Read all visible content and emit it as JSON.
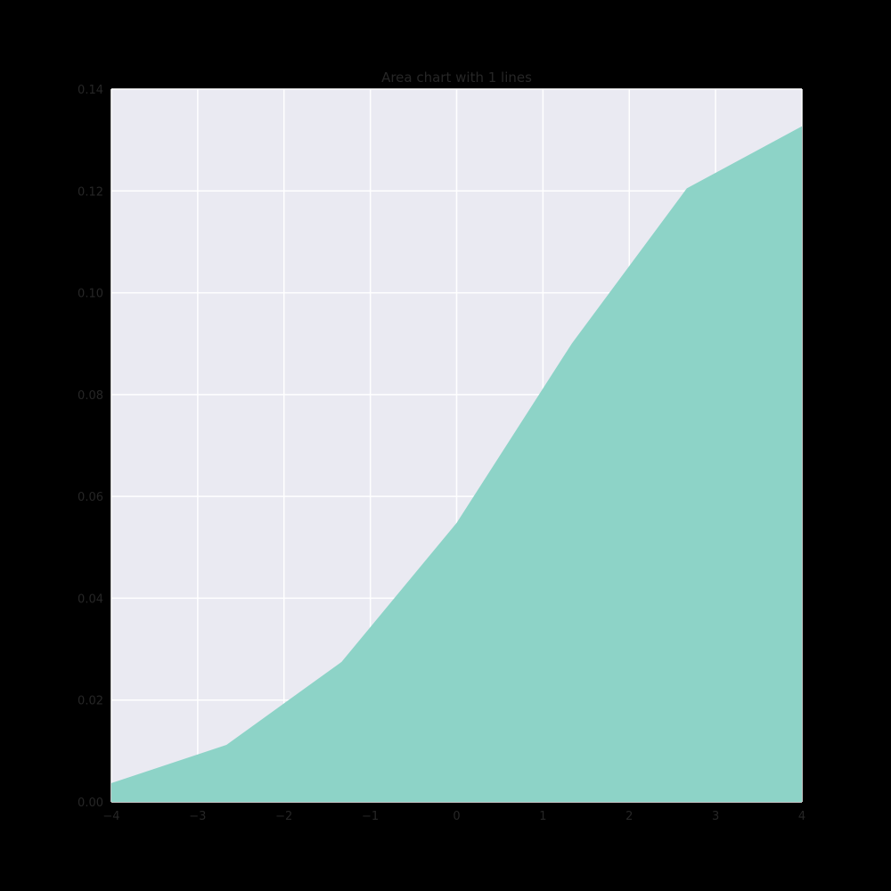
{
  "chart_data": {
    "type": "area",
    "title": "Area chart with 1 lines",
    "xlabel": "",
    "ylabel": "",
    "xlim": [
      -4,
      4
    ],
    "ylim": [
      0,
      0.14
    ],
    "x_ticks": [
      -4,
      -3,
      -2,
      -1,
      0,
      1,
      2,
      3,
      4
    ],
    "x_tick_labels": [
      "−4",
      "−3",
      "−2",
      "−1",
      "0",
      "1",
      "2",
      "3",
      "4"
    ],
    "y_ticks": [
      0,
      0.02,
      0.04,
      0.06,
      0.08,
      0.1,
      0.12,
      0.14
    ],
    "y_tick_labels": [
      "0.00",
      "0.02",
      "0.04",
      "0.06",
      "0.08",
      "0.10",
      "0.12",
      "0.14"
    ],
    "grid": true,
    "legend": "none",
    "x": [
      -4,
      -2.6667,
      -1.3333,
      0,
      1.3333,
      2.6667,
      4
    ],
    "series": [
      {
        "values": [
          0.0037,
          0.0112,
          0.0275,
          0.0548,
          0.09,
          0.1205,
          0.1327
        ],
        "color": "#8dd3c7"
      }
    ],
    "colors": {
      "figure_background": "#000000",
      "plot_background": "#eaeaf2",
      "grid": "#ffffff",
      "text": "#262626"
    }
  }
}
